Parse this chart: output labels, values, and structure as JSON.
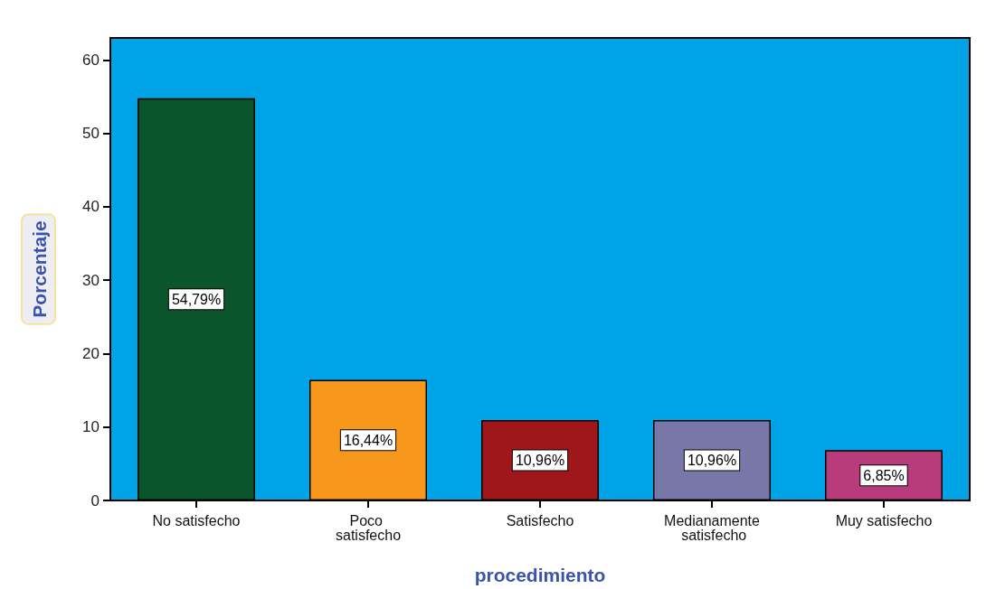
{
  "chart_data": {
    "type": "bar",
    "xlabel": "procedimiento",
    "ylabel": "Porcentaje",
    "categories": [
      "No satisfecho",
      "Poco satisfecho",
      "Satisfecho",
      "Medianamente satisfecho",
      "Muy satisfecho"
    ],
    "values": [
      54.79,
      16.44,
      10.96,
      10.96,
      6.85
    ],
    "colors": [
      "#0b552d",
      "#f7981d",
      "#a0171b",
      "#7878a8",
      "#b83b7c"
    ],
    "value_labels": [
      "54,79%",
      "16,44%",
      "10,96%",
      "10,96%",
      "6,85%"
    ],
    "ylim": [
      0,
      63
    ],
    "yticks": [
      0,
      10,
      20,
      30,
      40,
      50,
      60
    ],
    "grid": false
  }
}
